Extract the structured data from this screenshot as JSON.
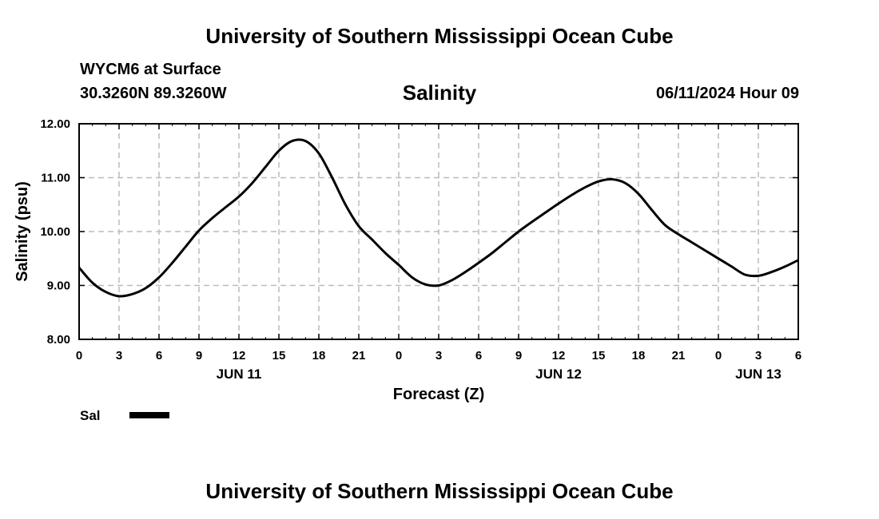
{
  "header": {
    "title": "University of Southern Mississippi Ocean Cube",
    "station": "WYCM6 at Surface",
    "coords": "30.3260N  89.3260W",
    "datetime": "06/11/2024 Hour 09"
  },
  "footer": {
    "title": "University of Southern Mississippi Ocean Cube"
  },
  "chart_data": {
    "type": "line",
    "title": "Salinity",
    "xlabel": "Forecast (Z)",
    "ylabel": "Salinity (psu)",
    "ylim": [
      8.0,
      12.0
    ],
    "xlim": [
      0,
      54
    ],
    "yticks": [
      "8.00",
      "9.00",
      "10.00",
      "11.00",
      "12.00"
    ],
    "xticks": [
      "0",
      "3",
      "6",
      "9",
      "12",
      "15",
      "18",
      "21",
      "0",
      "3",
      "6",
      "9",
      "12",
      "15",
      "18",
      "21",
      "0",
      "3",
      "6"
    ],
    "day_labels": [
      {
        "label": "JUN 11",
        "hour": 12
      },
      {
        "label": "JUN 12",
        "hour": 36
      },
      {
        "label": "JUN 13",
        "hour": 51
      }
    ],
    "grid": true,
    "legend_position": "bottom-left",
    "series": [
      {
        "name": "Sal",
        "color": "#000000",
        "x": [
          0,
          1,
          2,
          3,
          4,
          5,
          6,
          7,
          8,
          9,
          10,
          11,
          12,
          13,
          14,
          15,
          16,
          17,
          18,
          19,
          20,
          21,
          22,
          23,
          24,
          25,
          26,
          27,
          28,
          29,
          30,
          31,
          32,
          33,
          34,
          35,
          36,
          37,
          38,
          39,
          40,
          41,
          42,
          43,
          44,
          45,
          46,
          47,
          48,
          49,
          50,
          51,
          52,
          53,
          54
        ],
        "y": [
          9.33,
          9.05,
          8.88,
          8.8,
          8.84,
          8.95,
          9.15,
          9.42,
          9.72,
          10.02,
          10.25,
          10.45,
          10.65,
          10.9,
          11.2,
          11.5,
          11.68,
          11.68,
          11.45,
          11.0,
          10.5,
          10.1,
          9.85,
          9.6,
          9.38,
          9.15,
          9.02,
          9.0,
          9.1,
          9.25,
          9.42,
          9.6,
          9.8,
          10.0,
          10.18,
          10.35,
          10.52,
          10.68,
          10.82,
          10.93,
          10.97,
          10.9,
          10.7,
          10.4,
          10.12,
          9.95,
          9.8,
          9.65,
          9.5,
          9.35,
          9.2,
          9.18,
          9.25,
          9.35,
          9.47
        ]
      }
    ]
  }
}
